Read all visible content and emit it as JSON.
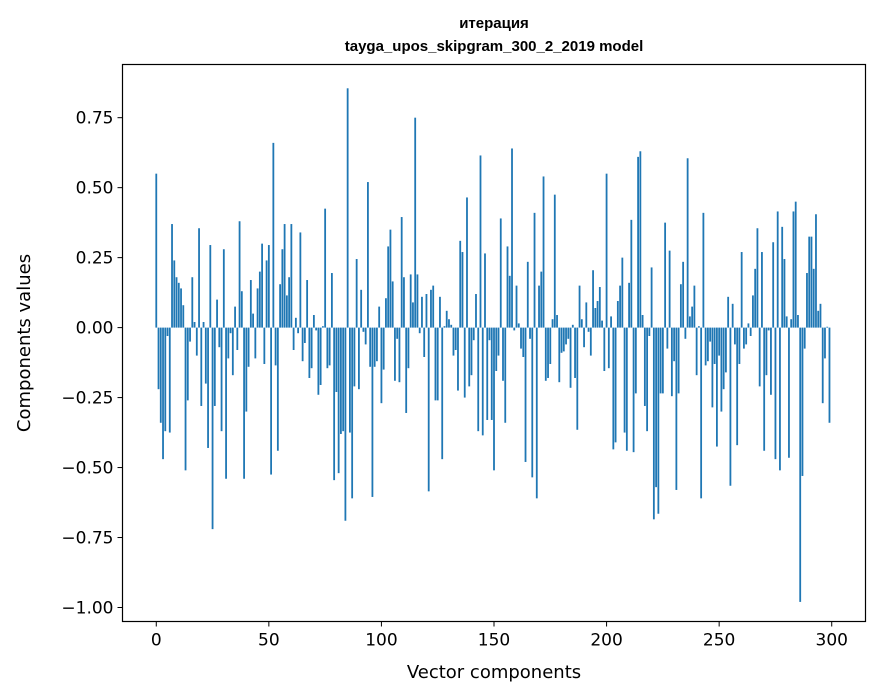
{
  "chart_data": {
    "type": "bar",
    "title_line1": "итерация",
    "title_line2": "tayga_upos_skipgram_300_2_2019 model",
    "xlabel": "Vector components",
    "ylabel": "Components values",
    "xlim": [
      -15,
      315
    ],
    "ylim": [
      -1.05,
      0.94
    ],
    "xticks": [
      0,
      50,
      100,
      150,
      200,
      250,
      300
    ],
    "xtick_labels": [
      "0",
      "50",
      "100",
      "150",
      "200",
      "250",
      "300"
    ],
    "yticks": [
      0.75,
      0.5,
      0.25,
      0,
      -0.25,
      -0.5,
      -0.75,
      -1.0
    ],
    "ytick_labels": [
      "0.75",
      "0.50",
      "0.25",
      "0.00",
      "−0.25",
      "−0.50",
      "−0.75",
      "−1.00"
    ],
    "bar_color": "#1f77b4",
    "grid": false,
    "values": [
      0.55,
      -0.22,
      -0.34,
      -0.47,
      -0.37,
      -0.03,
      -0.375,
      0.37,
      0.24,
      0.18,
      0.16,
      0.14,
      0.08,
      -0.51,
      -0.26,
      -0.05,
      0.18,
      0.02,
      -0.1,
      0.355,
      -0.28,
      0.02,
      -0.2,
      -0.43,
      0.295,
      -0.72,
      -0.28,
      0.1,
      -0.07,
      -0.37,
      0.28,
      -0.54,
      -0.11,
      -0.02,
      -0.17,
      0.075,
      -0.08,
      0.38,
      0.13,
      -0.54,
      -0.3,
      -0.14,
      0.17,
      0.05,
      -0.11,
      0.14,
      0.2,
      0.3,
      -0.13,
      0.24,
      0.295,
      -0.525,
      0.66,
      -0.135,
      -0.44,
      0.155,
      0.28,
      0.37,
      0.115,
      0.18,
      0.37,
      -0.08,
      0.035,
      -0.02,
      0.34,
      -0.12,
      -0.055,
      0.17,
      -0.18,
      -0.145,
      0.045,
      -0.01,
      -0.24,
      -0.205,
      0.005,
      0.425,
      -0.145,
      -0.135,
      0.195,
      -0.545,
      -0.23,
      -0.52,
      -0.38,
      -0.37,
      -0.69,
      0.855,
      -0.375,
      -0.61,
      -0.21,
      0.245,
      -0.22,
      0.135,
      -0.015,
      -0.06,
      0.52,
      -0.14,
      -0.605,
      -0.14,
      -0.12,
      0.075,
      -0.27,
      -0.15,
      0.105,
      0.29,
      0.35,
      0.165,
      -0.19,
      -0.04,
      -0.195,
      0.395,
      0.18,
      -0.305,
      -0.145,
      0.19,
      0.09,
      0.75,
      0.19,
      -0.02,
      0.11,
      -0.105,
      0.12,
      -0.585,
      0.135,
      0.15,
      -0.26,
      -0.26,
      0.11,
      -0.47,
      0.005,
      0.06,
      0.03,
      0.01,
      -0.1,
      -0.08,
      -0.225,
      0.31,
      0.27,
      -0.25,
      0.465,
      -0.21,
      -0.17,
      -0.045,
      0.12,
      -0.37,
      0.615,
      -0.385,
      0.265,
      -0.33,
      -0.045,
      -0.33,
      -0.51,
      -0.155,
      -0.1,
      0.39,
      -0.19,
      -0.34,
      0.29,
      0.185,
      0.64,
      -0.01,
      0.15,
      0.015,
      -0.075,
      -0.105,
      -0.48,
      0.235,
      -0.04,
      -0.535,
      0.41,
      -0.61,
      0.15,
      0.2,
      0.54,
      -0.19,
      -0.18,
      -0.13,
      0.03,
      0.475,
      0.045,
      -0.195,
      -0.09,
      -0.085,
      -0.06,
      -0.04,
      -0.215,
      0.01,
      -0.18,
      -0.365,
      0.15,
      0.03,
      -0.07,
      0.09,
      -0.015,
      -0.1,
      0.205,
      0.07,
      0.095,
      0.145,
      0.025,
      -0.155,
      0.55,
      -0.145,
      0.04,
      -0.435,
      -0.41,
      0.095,
      0.15,
      0.25,
      -0.375,
      -0.44,
      0.16,
      0.385,
      -0.445,
      -0.235,
      0.61,
      0.63,
      0.045,
      -0.28,
      -0.37,
      -0.03,
      0.215,
      -0.685,
      -0.57,
      -0.665,
      -0.235,
      -0.235,
      0.375,
      -0.075,
      0.275,
      -0.245,
      -0.12,
      -0.58,
      -0.235,
      0.155,
      0.235,
      -0.04,
      0.605,
      0.04,
      0.075,
      0.15,
      -0.17,
      0.005,
      -0.61,
      0.41,
      -0.135,
      -0.12,
      -0.05,
      -0.285,
      -0.13,
      -0.425,
      -0.1,
      -0.3,
      -0.22,
      -0.16,
      0.11,
      -0.565,
      0.085,
      -0.06,
      -0.42,
      -0.13,
      0.27,
      -0.075,
      -0.06,
      0.015,
      -0.03,
      0.115,
      0.21,
      0.355,
      -0.21,
      0.27,
      -0.44,
      -0.17,
      -0.01,
      -0.24,
      0.305,
      -0.47,
      0.415,
      -0.51,
      0.36,
      0.245,
      0.04,
      -0.465,
      0.03,
      0.415,
      0.45,
      0.045,
      -0.98,
      -0.53,
      -0.075,
      0.195,
      0.325,
      0.325,
      0.21,
      0.405,
      0.06,
      0.085,
      -0.27,
      -0.11,
      0.003,
      -0.34
    ]
  }
}
